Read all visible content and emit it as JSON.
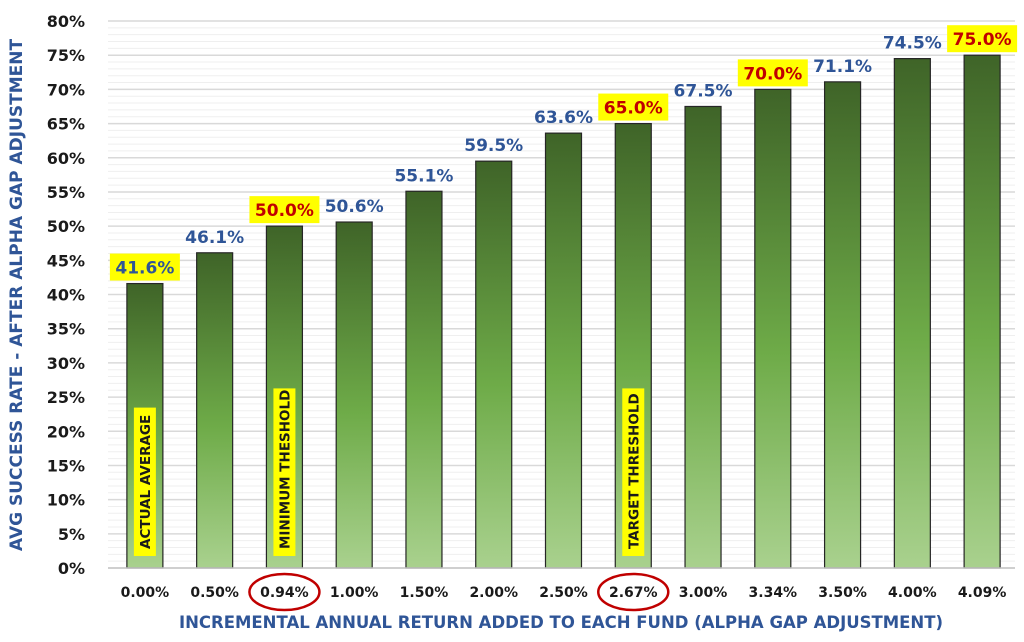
{
  "chart_data": {
    "type": "bar",
    "title": "",
    "xlabel": "INCREMENTAL ANNUAL RETURN ADDED TO EACH FUND (ALPHA GAP ADJUSTMENT)",
    "ylabel": "AVG SUCCESS RATE - AFTER ALPHA GAP ADJUSTMENT",
    "ylim": [
      0,
      80
    ],
    "yticks": [
      "0%",
      "5%",
      "10%",
      "15%",
      "20%",
      "25%",
      "30%",
      "35%",
      "40%",
      "45%",
      "50%",
      "55%",
      "60%",
      "65%",
      "70%",
      "75%",
      "80%"
    ],
    "grid": true,
    "categories": [
      "0.00%",
      "0.50%",
      "0.94%",
      "1.00%",
      "1.50%",
      "2.00%",
      "2.50%",
      "2.67%",
      "3.00%",
      "3.34%",
      "3.50%",
      "4.00%",
      "4.09%"
    ],
    "values": [
      41.6,
      46.1,
      50.0,
      50.6,
      55.1,
      59.5,
      63.6,
      65.0,
      67.5,
      70.0,
      71.1,
      74.5,
      75.0
    ],
    "data_labels": [
      "41.6%",
      "46.1%",
      "50.0%",
      "50.6%",
      "55.1%",
      "59.5%",
      "63.6%",
      "65.0%",
      "67.5%",
      "70.0%",
      "71.1%",
      "74.5%",
      "75.0%"
    ],
    "highlighted_labels": [
      0,
      2,
      7,
      9,
      12
    ],
    "red_labels": [
      2,
      7,
      9,
      12
    ],
    "circled_categories": [
      2,
      7
    ],
    "annotations": [
      {
        "index": 0,
        "text": "ACTUAL AVERAGE"
      },
      {
        "index": 2,
        "text": "MINIMUM THESHOLD"
      },
      {
        "index": 7,
        "text": "TARGET THRESHOLD"
      }
    ],
    "colors": {
      "bar_top": "#3f6428",
      "bar_mid": "#6eab48",
      "bar_bottom": "#a9d18e",
      "label_blue": "#2f5597",
      "label_red": "#c00000",
      "highlight": "#ffff00",
      "circle": "#c00000",
      "axis_title": "#2f5597"
    }
  }
}
